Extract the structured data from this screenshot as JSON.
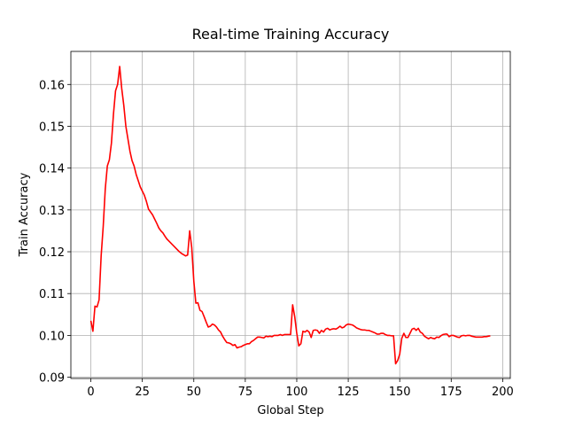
{
  "chart_data": {
    "type": "line",
    "title": "Real-time Training Accuracy",
    "x_label": "Global Step",
    "y_label": "Train Accuracy",
    "x": [
      0,
      1,
      2,
      3,
      4,
      5,
      6,
      7,
      8,
      9,
      10,
      11,
      12,
      13,
      14,
      15,
      16,
      17,
      18,
      19,
      20,
      21,
      22,
      23,
      24,
      25,
      26,
      27,
      28,
      29,
      30,
      31,
      32,
      33,
      34,
      35,
      36,
      37,
      38,
      39,
      40,
      41,
      42,
      43,
      44,
      45,
      46,
      47,
      48,
      49,
      50,
      51,
      52,
      53,
      54,
      55,
      56,
      57,
      58,
      59,
      60,
      61,
      62,
      63,
      64,
      65,
      66,
      67,
      68,
      69,
      70,
      71,
      72,
      73,
      74,
      75,
      76,
      77,
      78,
      79,
      80,
      81,
      82,
      83,
      84,
      85,
      86,
      87,
      88,
      89,
      90,
      91,
      92,
      93,
      94,
      95,
      96,
      97,
      98,
      99,
      100,
      101,
      102,
      103,
      104,
      105,
      106,
      107,
      108,
      109,
      110,
      111,
      112,
      113,
      114,
      115,
      116,
      117,
      118,
      119,
      120,
      121,
      122,
      123,
      124,
      125,
      126,
      127,
      128,
      129,
      130,
      131,
      132,
      133,
      134,
      135,
      136,
      137,
      138,
      139,
      140,
      141,
      142,
      143,
      144,
      145,
      146,
      147,
      148,
      149,
      150,
      151,
      152,
      153,
      154,
      155,
      156,
      157,
      158,
      159,
      160,
      161,
      162,
      163,
      164,
      165,
      166,
      167,
      168,
      169,
      170,
      171,
      172,
      173,
      174,
      175,
      176,
      177,
      178,
      179,
      180,
      181,
      182,
      183,
      184,
      185,
      186,
      187,
      188,
      189,
      190,
      191,
      192,
      193,
      194
    ],
    "series": [
      {
        "color": "#ff0000",
        "values": [
          0.1035,
          0.101,
          0.107,
          0.1068,
          0.1085,
          0.119,
          0.126,
          0.135,
          0.1405,
          0.142,
          0.146,
          0.153,
          0.1585,
          0.16,
          0.1643,
          0.159,
          0.155,
          0.15,
          0.147,
          0.144,
          0.1418,
          0.1405,
          0.1385,
          0.137,
          0.1355,
          0.1345,
          0.1335,
          0.132,
          0.1302,
          0.1295,
          0.1288,
          0.1278,
          0.1268,
          0.1257,
          0.125,
          0.1245,
          0.1237,
          0.123,
          0.1225,
          0.122,
          0.1215,
          0.121,
          0.1205,
          0.12,
          0.1196,
          0.1193,
          0.119,
          0.1192,
          0.125,
          0.121,
          0.113,
          0.1077,
          0.1078,
          0.106,
          0.1057,
          0.1045,
          0.1032,
          0.102,
          0.1022,
          0.1027,
          0.1025,
          0.102,
          0.1013,
          0.1008,
          0.0998,
          0.099,
          0.0983,
          0.0982,
          0.098,
          0.0976,
          0.0978,
          0.097,
          0.0972,
          0.0973,
          0.0976,
          0.0978,
          0.098,
          0.098,
          0.0985,
          0.0988,
          0.0992,
          0.0996,
          0.0996,
          0.0995,
          0.0994,
          0.0998,
          0.0997,
          0.0998,
          0.0997,
          0.1,
          0.1,
          0.1,
          0.1002,
          0.1,
          0.1002,
          0.1002,
          0.1002,
          0.1002,
          0.1073,
          0.1045,
          0.1005,
          0.0975,
          0.098,
          0.101,
          0.1008,
          0.1012,
          0.1008,
          0.0995,
          0.1012,
          0.1013,
          0.1012,
          0.1005,
          0.1012,
          0.1008,
          0.1015,
          0.1017,
          0.1013,
          0.1015,
          0.1016,
          0.1015,
          0.1018,
          0.1022,
          0.1018,
          0.102,
          0.1025,
          0.1027,
          0.1026,
          0.1025,
          0.1022,
          0.1018,
          0.1016,
          0.1014,
          0.1013,
          0.1013,
          0.1012,
          0.1012,
          0.101,
          0.1008,
          0.1006,
          0.1003,
          0.1003,
          0.1005,
          0.1005,
          0.1002,
          0.1,
          0.1,
          0.0999,
          0.0999,
          0.0932,
          0.094,
          0.0955,
          0.0993,
          0.1005,
          0.0995,
          0.0995,
          0.1005,
          0.1015,
          0.1017,
          0.1012,
          0.1017,
          0.1008,
          0.1005,
          0.0998,
          0.0995,
          0.0992,
          0.0995,
          0.0993,
          0.0992,
          0.0996,
          0.0995,
          0.0999,
          0.1002,
          0.1003,
          0.1003,
          0.0997,
          0.1,
          0.1,
          0.0998,
          0.0996,
          0.0995,
          0.0999,
          0.1,
          0.0999,
          0.1,
          0.1,
          0.0998,
          0.0997,
          0.0996,
          0.0996,
          0.0996,
          0.0996,
          0.0997,
          0.0997,
          0.0998,
          0.0999
        ]
      }
    ],
    "xlim": [
      -9.7,
      203.7
    ],
    "ylim": [
      0.0897,
      0.1679
    ],
    "xticks": [
      0,
      25,
      50,
      75,
      100,
      125,
      150,
      175,
      200
    ],
    "yticks": [
      0.09,
      {
        "value": 0.1,
        "label": "0.10"
      },
      0.11,
      0.12,
      0.13,
      0.14,
      0.15,
      0.16
    ],
    "grid": true
  }
}
